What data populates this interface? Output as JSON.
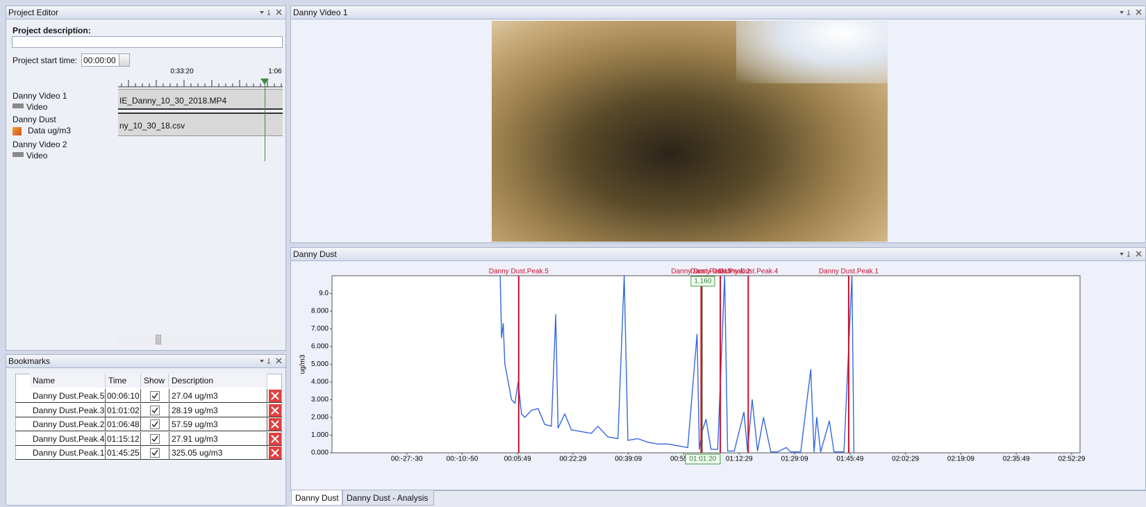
{
  "project_editor": {
    "title": "Project Editor",
    "description_label": "Project description:",
    "start_time_label": "Project start time:",
    "start_time": "00:00:00",
    "timeline_ticks": [
      "0:33:20",
      "1:06"
    ],
    "tracks": [
      {
        "name": "Danny Video 1",
        "kind": "Video"
      },
      {
        "name": "Danny Dust",
        "kind": "Data ug/m3"
      },
      {
        "name": "Danny Video 2",
        "kind": "Video"
      }
    ],
    "clips": [
      "IE_Danny_10_30_2018.MP4",
      "ny_10_30_18.csv"
    ]
  },
  "video_panel": {
    "title": "Danny Video 1"
  },
  "bookmarks": {
    "title": "Bookmarks",
    "columns": [
      "Name",
      "Time",
      "Show",
      "Description"
    ],
    "rows": [
      [
        "Danny Dust.Peak.5",
        "00:06:10",
        "27.04 ug/m3"
      ],
      [
        "Danny Dust.Peak.3",
        "01:01:02",
        "28.19 ug/m3"
      ],
      [
        "Danny Dust.Peak.2",
        "01:06:48",
        "57.59 ug/m3"
      ],
      [
        "Danny Dust.Peak.4",
        "01:15:12",
        "27.91 ug/m3"
      ],
      [
        "Danny Dust.Peak.1",
        "01:45:25",
        "325.05 ug/m3"
      ]
    ]
  },
  "tabs": [
    "Danny Dust",
    "Danny Dust - Analysis"
  ],
  "chart_data": {
    "type": "line",
    "title": "Danny Dust",
    "y_label": "ug/m3",
    "x": [
      0.6,
      1.0,
      1.5,
      2.0,
      3.0,
      4.0,
      5.0,
      6.0,
      7.0,
      8.0,
      10,
      12,
      14,
      16,
      17.3,
      18,
      20,
      22,
      25,
      28,
      30,
      33,
      36,
      37.9,
      39,
      42,
      45,
      48,
      51,
      54,
      57,
      59.8,
      60.5,
      61.3,
      62.5,
      64,
      66,
      68.1,
      69,
      71,
      73.9,
      75,
      76.4,
      78,
      79.8,
      82,
      84,
      86.6,
      88,
      91,
      94,
      95,
      95.8,
      97,
      99.6,
      101,
      104,
      106.4,
      107
    ],
    "series": [
      {
        "color": "#3466e0",
        "values": [
          10,
          6.5,
          7.3,
          5,
          4,
          3,
          2.8,
          4,
          2.2,
          2.0,
          2.4,
          2.5,
          1.6,
          1.5,
          7.8,
          1.4,
          2.2,
          1.3,
          1.2,
          1.1,
          1.5,
          0.9,
          0.8,
          10,
          0.7,
          0.8,
          0.6,
          0.5,
          0.5,
          0.4,
          0.3,
          6.7,
          0.2,
          1.2,
          1.9,
          0.2,
          0.2,
          10,
          0.1,
          0.1,
          2.3,
          0.1,
          3.0,
          0.1,
          2.0,
          0.05,
          0.05,
          0.3,
          0.05,
          0.05,
          4.7,
          0.05,
          2.0,
          0.05,
          1.8,
          0.05,
          0.05,
          10,
          0
        ]
      }
    ],
    "xlim": [
      -50,
      175
    ],
    "ylim": [
      0,
      10
    ],
    "xticks": [
      {
        "value": -27.5,
        "label": "00:-27:-30"
      },
      {
        "value": -10.833,
        "label": "00:-10:-50"
      },
      {
        "value": 5.817,
        "label": "00:05:49"
      },
      {
        "value": 22.483,
        "label": "00:22:29"
      },
      {
        "value": 39.15,
        "label": "00:39:09"
      },
      {
        "value": 55.817,
        "label": "00:55:49"
      },
      {
        "value": 72.483,
        "label": "01:12:29"
      },
      {
        "value": 89.15,
        "label": "01:29:09"
      },
      {
        "value": 105.817,
        "label": "01:45:49"
      },
      {
        "value": 122.483,
        "label": "02:02:29"
      },
      {
        "value": 139.15,
        "label": "02:19:09"
      },
      {
        "value": 155.817,
        "label": "02:35:49"
      },
      {
        "value": 172.483,
        "label": "02:52:29"
      }
    ],
    "yticks": [
      {
        "value": 0,
        "label": "0.000"
      },
      {
        "value": 1,
        "label": "1.000"
      },
      {
        "value": 2,
        "label": "2.000"
      },
      {
        "value": 3,
        "label": "3.000"
      },
      {
        "value": 4,
        "label": "4.000"
      },
      {
        "value": 5,
        "label": "5.000"
      },
      {
        "value": 6,
        "label": "6.000"
      },
      {
        "value": 7,
        "label": "7.000"
      },
      {
        "value": 8,
        "label": "8.000"
      },
      {
        "value": 9,
        "label": "9.0"
      }
    ],
    "marker_color": "#c8102e",
    "markers": [
      {
        "label": "Danny Dust.Peak.5",
        "x": 6.167
      },
      {
        "label": "Danny Dust.Peak.3",
        "x": 61.033
      },
      {
        "label": "Danny Dust.Peak.2",
        "x": 66.8
      },
      {
        "label": "Danny Dust.Peak.4",
        "x": 75.2
      },
      {
        "label": "Danny Dust.Peak.1",
        "x": 105.417
      }
    ],
    "cursor": {
      "x": {
        "value": 61.333,
        "label": "01:01:20"
      },
      "y": {
        "value": 1.16,
        "label": "1.160"
      }
    }
  }
}
